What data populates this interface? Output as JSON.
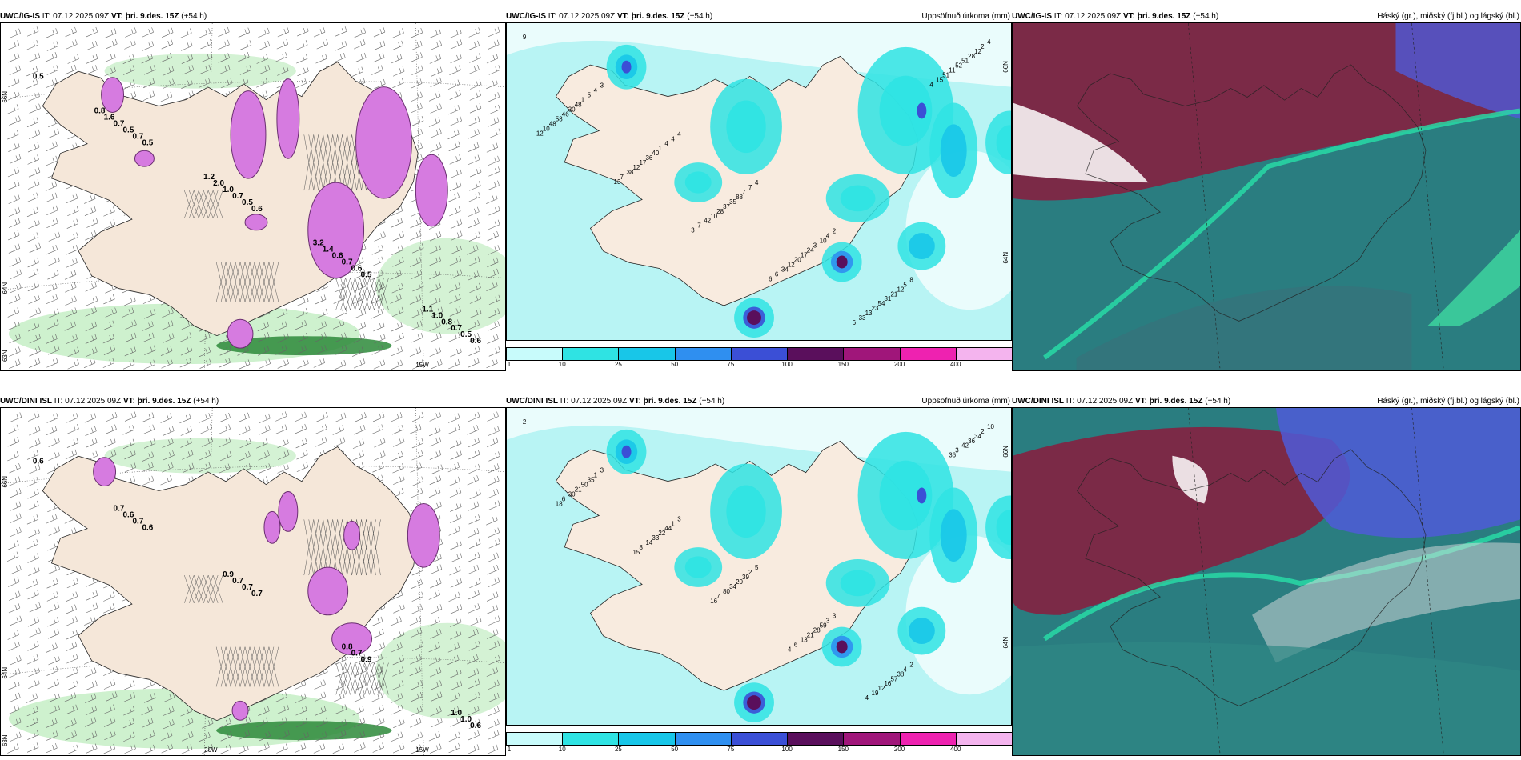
{
  "panels": [
    {
      "id": "p1",
      "model": "UWC/IG-IS",
      "it": "IT: 07.12.2025 09Z",
      "vt_label": "VT:",
      "vt": "þri. 9.des. 15Z",
      "lead": "(+54 h)",
      "right": "",
      "type": "wind"
    },
    {
      "id": "p2",
      "model": "UWC/IG-IS",
      "it": "IT: 07.12.2025 09Z",
      "vt_label": "VT:",
      "vt": "þri. 9.des. 15Z",
      "lead": "(+54 h)",
      "right": "Uppsöfnuð úrkoma (mm)",
      "type": "precip"
    },
    {
      "id": "p3",
      "model": "UWC/IG-IS",
      "it": "IT: 07.12.2025 09Z",
      "vt_label": "VT:",
      "vt": "þri. 9.des. 15Z",
      "lead": "(+54 h)",
      "right": "Háský (gr.), miðský (fj.bl.) og lágský (bl.)",
      "type": "cloud"
    },
    {
      "id": "p4",
      "model": "UWC/DINI ISL",
      "it": "IT: 07.12.2025 09Z",
      "vt_label": "VT:",
      "vt": "þri. 9.des. 15Z",
      "lead": "(+54 h)",
      "right": "",
      "type": "wind"
    },
    {
      "id": "p5",
      "model": "UWC/DINI ISL",
      "it": "IT: 07.12.2025 09Z",
      "vt_label": "VT:",
      "vt": "þri. 9.des. 15Z",
      "lead": "(+54 h)",
      "right": "Uppsöfnuð úrkoma (mm)",
      "type": "precip"
    },
    {
      "id": "p6",
      "model": "UWC/DINI ISL",
      "it": "IT: 07.12.2025 09Z",
      "vt_label": "VT:",
      "vt": "þri. 9.des. 15Z",
      "lead": "(+54 h)",
      "right": "Háský (gr.), miðský (fj.bl.) og lágský (bl.)",
      "type": "cloud"
    }
  ],
  "colorbar": {
    "ticks": [
      "1",
      "10",
      "25",
      "50",
      "75",
      "100",
      "150",
      "200",
      "400"
    ],
    "colors": [
      "#c8fbfb",
      "#2fe3e3",
      "#18c6e8",
      "#2f8ff0",
      "#3b4fd6",
      "#5a0f5c",
      "#a0167a",
      "#ee22b0",
      "#f4b4ee"
    ]
  },
  "grid_labels": {
    "p1": {
      "lat": [
        "66N",
        "64N",
        "63N"
      ],
      "lon": [
        "15W"
      ]
    },
    "p2": {
      "lat": [
        "66N",
        "64N"
      ],
      "lon": []
    },
    "p4": {
      "lat": [
        "66N",
        "64N",
        "63N"
      ],
      "lon": [
        "20W",
        "15W"
      ]
    },
    "p5": {
      "lat": [
        "66N",
        "64N"
      ],
      "lon": []
    }
  },
  "wind_values": {
    "p1": [
      "0.5",
      "0.5",
      "0.6",
      "0.5",
      "0.6",
      "0.7",
      "0.5",
      "0.6",
      "0.5",
      "0.5",
      "0.7",
      "0.7",
      "0.7",
      "0.7",
      "1.0",
      "0.6",
      "0.8",
      "1.6",
      "2.0",
      "1.4",
      "1.0",
      "0.8",
      "1.2",
      "3.2",
      "1.1"
    ],
    "p4": [
      "0.6",
      "0.6",
      "0.7",
      "0.9",
      "0.6",
      "0.7",
      "0.7",
      "0.7",
      "1.0",
      "0.6",
      "0.7",
      "0.8",
      "1.0",
      "0.7",
      "0.9"
    ]
  },
  "precip_values": {
    "p2": [
      "9",
      "3",
      "4",
      "4",
      "2",
      "8",
      "4",
      "4",
      "4",
      "7",
      "4",
      "5",
      "2",
      "5",
      "4",
      "7",
      "10",
      "12",
      "12",
      "1",
      "1",
      "88",
      "3",
      "21",
      "28",
      "48",
      "40",
      "35",
      "24",
      "31",
      "51",
      "30",
      "36",
      "37",
      "17",
      "54",
      "52",
      "46",
      "17",
      "28",
      "20",
      "23",
      "11",
      "58",
      "12",
      "10",
      "12",
      "13",
      "51",
      "48",
      "38",
      "42",
      "34",
      "33",
      "15",
      "10",
      "7",
      "7",
      "6",
      "6",
      "4",
      "12",
      "13",
      "3",
      "6"
    ],
    "p5": [
      "2",
      "3",
      "3",
      "5",
      "3",
      "2",
      "10",
      "1",
      "1",
      "2",
      "3",
      "4",
      "2",
      "35",
      "44",
      "39",
      "59",
      "38",
      "34",
      "50",
      "22",
      "20",
      "28",
      "57",
      "36",
      "21",
      "33",
      "34",
      "21",
      "16",
      "42",
      "30",
      "14",
      "80",
      "13",
      "12",
      "3",
      "6",
      "8",
      "7",
      "6",
      "19",
      "36",
      "18",
      "15",
      "16",
      "4",
      "4"
    ]
  },
  "colors": {
    "land": "#f5e7d9",
    "sea_light": "#b8f4f4",
    "wind_green_light": "#c9efc9",
    "wind_green_dark": "#2d8a3a",
    "wind_purple": "#d67be0",
    "cloud_teal": "#2a7d80",
    "cloud_red": "#8a1b3d",
    "cloud_blue": "#4f5ad8"
  }
}
